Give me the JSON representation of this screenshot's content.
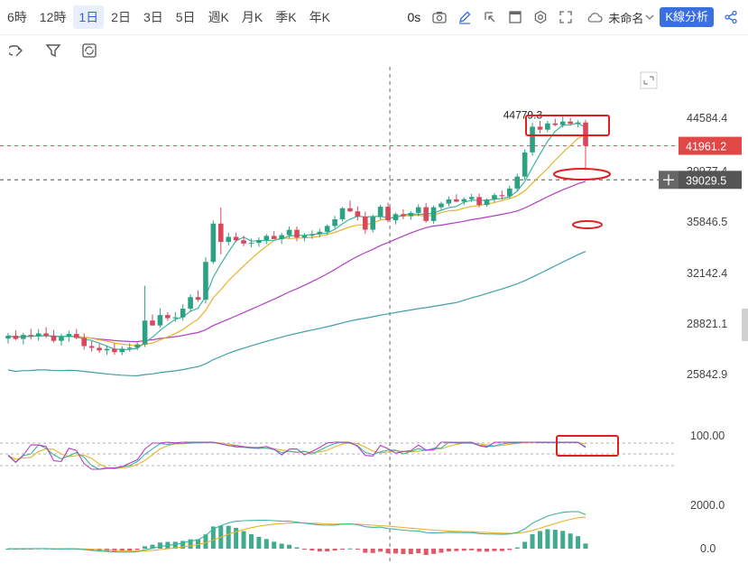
{
  "toolbar": {
    "timeframes": [
      "6時",
      "12時",
      "1日",
      "2日",
      "3日",
      "5日",
      "週K",
      "月K",
      "季K",
      "年K"
    ],
    "active_index": 2,
    "interval_label": "0s",
    "chart_name": "未命名",
    "analysis_button": "K線分析",
    "accent_color": "#3a6fe0"
  },
  "chart_data": {
    "type": "candlestick",
    "price_axis": {
      "ticks": [
        "44584.4",
        "39977.4",
        "35846.5",
        "32142.4",
        "28821.1",
        "25842.9"
      ],
      "tick_values": [
        44584.4,
        39977.4,
        35846.5,
        32142.4,
        28821.1,
        25842.9
      ]
    },
    "annotations": {
      "high_label": "44779.3",
      "last_price": "41961.2",
      "crosshair_price": "39029.5",
      "last_price_color": "#e04848",
      "crosshair_color": "#555555"
    },
    "oscillator_axis": {
      "ticks": [
        "100.00"
      ]
    },
    "macd_axis": {
      "ticks": [
        "2000.0",
        "0.0"
      ]
    },
    "colors": {
      "up": "#2da184",
      "down": "#d9475b",
      "ma_fast": "#3fb3a2",
      "ma_mid": "#e7b32b",
      "ma_slow": "#b23fc2",
      "ma_long": "#3ea0a6",
      "highlight": "#e02020"
    },
    "candles": [
      [
        27840,
        28180,
        27550,
        28010
      ],
      [
        28010,
        28340,
        27750,
        27820
      ],
      [
        27820,
        28190,
        27500,
        28060
      ],
      [
        28060,
        28420,
        27780,
        27990
      ],
      [
        27990,
        28400,
        27720,
        28150
      ],
      [
        28150,
        28520,
        27880,
        28020
      ],
      [
        28020,
        28360,
        27610,
        27710
      ],
      [
        27710,
        28140,
        27430,
        27950
      ],
      [
        27950,
        28310,
        27650,
        28120
      ],
      [
        28120,
        28410,
        27800,
        27880
      ],
      [
        27880,
        28150,
        27200,
        27400
      ],
      [
        27400,
        27690,
        27080,
        27300
      ],
      [
        27300,
        27520,
        27000,
        27150
      ],
      [
        27150,
        27420,
        26900,
        27240
      ],
      [
        27240,
        27560,
        26900,
        27050
      ],
      [
        27050,
        27400,
        26880,
        27250
      ],
      [
        27250,
        27580,
        27080,
        27310
      ],
      [
        27310,
        27620,
        27150,
        27500
      ],
      [
        27500,
        31150,
        27350,
        28930
      ],
      [
        28930,
        29310,
        28620,
        28630
      ],
      [
        28630,
        29700,
        28510,
        29270
      ],
      [
        29270,
        29450,
        28930,
        29080
      ],
      [
        29080,
        29450,
        28860,
        29130
      ],
      [
        29130,
        29950,
        28920,
        29670
      ],
      [
        29670,
        30580,
        29490,
        30410
      ],
      [
        30410,
        30850,
        30120,
        30240
      ],
      [
        30240,
        33100,
        30000,
        32780
      ],
      [
        32780,
        35800,
        32620,
        35560
      ],
      [
        35560,
        36800,
        33300,
        34200
      ],
      [
        34200,
        34880,
        33950,
        34570
      ],
      [
        34570,
        34900,
        34180,
        34320
      ],
      [
        34320,
        34650,
        33900,
        34080
      ],
      [
        34080,
        34440,
        33800,
        34130
      ],
      [
        34130,
        34540,
        33850,
        34340
      ],
      [
        34340,
        34780,
        34040,
        34640
      ],
      [
        34640,
        35000,
        34400,
        34410
      ],
      [
        34410,
        34870,
        34050,
        34700
      ],
      [
        34700,
        35350,
        34470,
        35090
      ],
      [
        35090,
        35330,
        34250,
        34520
      ],
      [
        34520,
        34850,
        34260,
        34660
      ],
      [
        34660,
        35050,
        34420,
        34760
      ],
      [
        34760,
        35170,
        34530,
        34950
      ],
      [
        34950,
        35500,
        34720,
        35380
      ],
      [
        35380,
        36150,
        35200,
        35890
      ],
      [
        35890,
        36850,
        35720,
        36740
      ],
      [
        36740,
        37350,
        36450,
        36500
      ],
      [
        36500,
        36890,
        35800,
        36090
      ],
      [
        36090,
        36480,
        34800,
        35100
      ],
      [
        35100,
        36250,
        34900,
        36060
      ],
      [
        36060,
        37020,
        35870,
        36860
      ],
      [
        36860,
        37180,
        35650,
        35810
      ],
      [
        35810,
        36400,
        35500,
        36280
      ],
      [
        36280,
        36650,
        35900,
        36120
      ],
      [
        36120,
        36520,
        35850,
        36380
      ],
      [
        36380,
        37050,
        36120,
        36820
      ],
      [
        36820,
        37150,
        35620,
        35760
      ],
      [
        35760,
        36950,
        35550,
        36820
      ],
      [
        36820,
        37260,
        36600,
        37110
      ],
      [
        37110,
        37680,
        36900,
        37440
      ],
      [
        37440,
        37850,
        37200,
        37260
      ],
      [
        37260,
        37600,
        36990,
        37460
      ],
      [
        37460,
        37880,
        37250,
        37630
      ],
      [
        37630,
        37900,
        36800,
        37000
      ],
      [
        37000,
        37520,
        36850,
        37430
      ],
      [
        37430,
        37950,
        37220,
        37780
      ],
      [
        37780,
        38150,
        37450,
        37690
      ],
      [
        37690,
        38550,
        37500,
        38320
      ],
      [
        38320,
        39550,
        38100,
        39300
      ],
      [
        39300,
        41650,
        39000,
        41380
      ],
      [
        41380,
        44050,
        41100,
        43700
      ],
      [
        43700,
        44250,
        43100,
        43430
      ],
      [
        43430,
        44250,
        43200,
        44010
      ],
      [
        44010,
        44450,
        43750,
        43860
      ],
      [
        43860,
        44779,
        43600,
        44180
      ],
      [
        44180,
        44520,
        43800,
        43980
      ],
      [
        43980,
        44300,
        43650,
        44100
      ],
      [
        44100,
        44350,
        39850,
        41961
      ]
    ],
    "oscillator": {
      "ref_lines": [
        100,
        80,
        50
      ]
    }
  }
}
